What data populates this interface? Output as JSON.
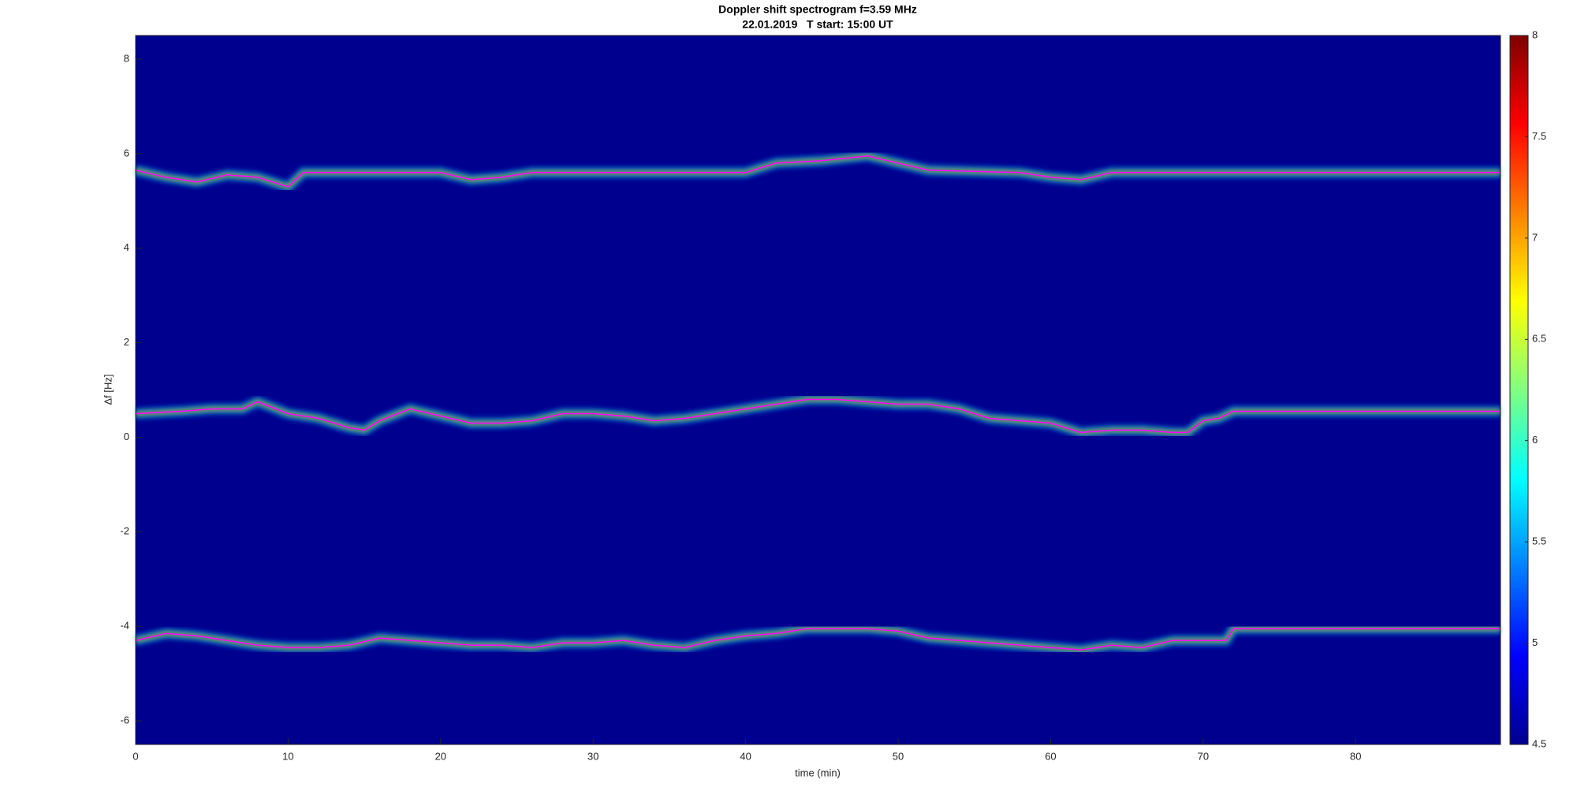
{
  "chart_data": {
    "type": "line",
    "title": "Doppler shift spectrogram f=3.59 MHz",
    "subtitle": "22.01.2019   T start: 15:00 UT",
    "x_label": "time (min)",
    "y_label": "Δf [Hz]",
    "xlim": [
      0,
      89.5
    ],
    "xticks": [
      0,
      10,
      20,
      30,
      40,
      50,
      60,
      70,
      80
    ],
    "ylim": [
      -6.5,
      8.5
    ],
    "yticks": [
      -6,
      -4,
      -2,
      0,
      2,
      4,
      6,
      8
    ],
    "background": "#00008f",
    "colorbar": {
      "lim": [
        4.5,
        8
      ],
      "ticks": [
        4.5,
        5,
        5.5,
        6,
        6.5,
        7,
        7.5,
        8
      ],
      "colors": [
        "#00008f",
        "#0000ff",
        "#0080ff",
        "#00ffff",
        "#80ff80",
        "#ffff00",
        "#ff8000",
        "#ff0000",
        "#800000"
      ]
    },
    "series": [
      {
        "color": "#ff00ff",
        "x": [
          0,
          2,
          4,
          6,
          8,
          10,
          11,
          20,
          22,
          24,
          26,
          35,
          40,
          42,
          45,
          48,
          50,
          52,
          58,
          60,
          62,
          64,
          89.5
        ],
        "values": [
          5.65,
          5.5,
          5.4,
          5.55,
          5.5,
          5.3,
          5.6,
          5.6,
          5.45,
          5.5,
          5.6,
          5.6,
          5.6,
          5.8,
          5.85,
          5.95,
          5.8,
          5.65,
          5.6,
          5.5,
          5.45,
          5.6,
          5.6
        ]
      },
      {
        "color": "#ff00ff",
        "x": [
          0,
          3,
          5,
          7,
          8,
          10,
          12,
          14,
          15,
          16,
          18,
          20,
          22,
          24,
          26,
          28,
          30,
          32,
          34,
          36,
          38,
          40,
          42,
          44,
          46,
          48,
          50,
          52,
          54,
          56,
          58,
          60,
          62,
          64,
          66,
          68,
          69,
          70,
          71,
          72,
          89.5
        ],
        "values": [
          0.5,
          0.55,
          0.6,
          0.6,
          0.75,
          0.5,
          0.4,
          0.2,
          0.15,
          0.35,
          0.6,
          0.45,
          0.3,
          0.3,
          0.35,
          0.5,
          0.5,
          0.45,
          0.35,
          0.4,
          0.5,
          0.6,
          0.7,
          0.8,
          0.8,
          0.75,
          0.7,
          0.7,
          0.6,
          0.4,
          0.35,
          0.3,
          0.1,
          0.15,
          0.15,
          0.1,
          0.1,
          0.35,
          0.4,
          0.55,
          0.55
        ]
      },
      {
        "color": "#ff00ff",
        "x": [
          0,
          2,
          4,
          6,
          8,
          10,
          12,
          14,
          16,
          18,
          20,
          22,
          24,
          26,
          28,
          30,
          32,
          34,
          36,
          38,
          40,
          42,
          44,
          46,
          48,
          50,
          52,
          54,
          56,
          58,
          60,
          62,
          64,
          66,
          68,
          70,
          71.5,
          72,
          89.5
        ],
        "values": [
          -4.3,
          -4.15,
          -4.2,
          -4.3,
          -4.4,
          -4.45,
          -4.45,
          -4.4,
          -4.25,
          -4.3,
          -4.35,
          -4.4,
          -4.4,
          -4.45,
          -4.35,
          -4.35,
          -4.3,
          -4.4,
          -4.45,
          -4.3,
          -4.2,
          -4.15,
          -4.05,
          -4.05,
          -4.05,
          -4.1,
          -4.25,
          -4.3,
          -4.35,
          -4.4,
          -4.45,
          -4.5,
          -4.4,
          -4.45,
          -4.3,
          -4.3,
          -4.3,
          -4.05,
          -4.05
        ]
      }
    ]
  }
}
